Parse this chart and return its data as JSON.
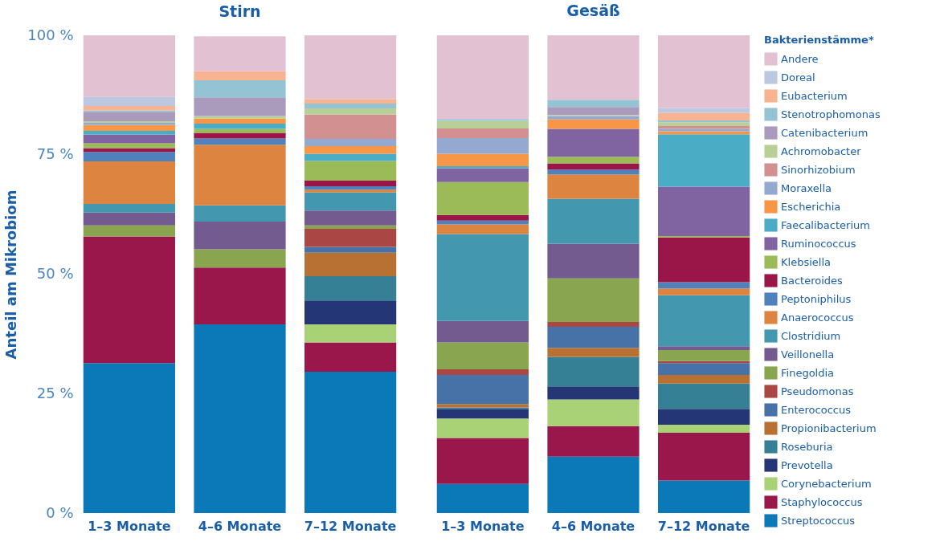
{
  "chart_data": [
    {
      "type": "bar",
      "stacked": true,
      "title": "Stirn",
      "ylabel": "Anteil am Mikrobiom",
      "categories": [
        "1–3 Monate",
        "4–6 Monate",
        "7–12 Monate"
      ],
      "ylim": [
        0,
        100
      ],
      "yticks": [
        {
          "value": 0,
          "label": "0 %"
        },
        {
          "value": 25,
          "label": "25 %"
        },
        {
          "value": 50,
          "label": "50 %"
        },
        {
          "value": 75,
          "label": "75 %"
        },
        {
          "value": 100,
          "label": "100 %"
        }
      ],
      "grid": false,
      "series": [
        {
          "color": "#0b78b7",
          "values": [
            31.4,
            39.5,
            29.6
          ]
        },
        {
          "color": "#99174a",
          "values": [
            26.5,
            11.9,
            6.1
          ]
        },
        {
          "color": "#a9d277",
          "values": [
            null,
            null,
            3.8
          ]
        },
        {
          "color": "#253677",
          "values": [
            null,
            null,
            5.0
          ]
        },
        {
          "color": "#368095",
          "values": [
            null,
            null,
            5.1
          ]
        },
        {
          "color": "#b87033",
          "values": [
            null,
            null,
            4.9
          ]
        },
        {
          "color": "#4672a8",
          "values": [
            null,
            null,
            1.2
          ]
        },
        {
          "color": "#aa4644",
          "values": [
            null,
            null,
            3.8
          ]
        },
        {
          "color": "#8aa54f",
          "values": [
            2.3,
            3.8,
            0.7
          ]
        },
        {
          "color": "#735a8f",
          "values": [
            2.7,
            5.8,
            3.1
          ]
        },
        {
          "color": "#4398b0",
          "values": [
            1.8,
            3.4,
            3.8
          ]
        },
        {
          "color": "#dc8440",
          "values": [
            8.9,
            12.7,
            0.6
          ]
        },
        {
          "color": "#4f81bd",
          "values": [
            2.0,
            1.3,
            0.7
          ]
        },
        {
          "color": "#9a1548",
          "values": [
            0.8,
            1.2,
            1.2
          ]
        },
        {
          "color": "#9bbb59",
          "values": [
            1.0,
            0.8,
            4.1
          ]
        },
        {
          "color": "#8064a2",
          "values": [
            1.8,
            null,
            null
          ]
        },
        {
          "color": "#4bacc6",
          "values": [
            0.8,
            1.1,
            1.5
          ]
        },
        {
          "color": "#f79646",
          "values": [
            1.2,
            1.1,
            1.6
          ]
        },
        {
          "color": "#94a9d0",
          "values": [
            0.5,
            null,
            1.5
          ]
        },
        {
          "color": "#d29190",
          "values": [
            null,
            null,
            5.1
          ]
        },
        {
          "color": "#b9cf98",
          "values": [
            0.3,
            0.5,
            1.3
          ]
        },
        {
          "color": "#aa9bbd",
          "values": [
            2.0,
            3.9,
            null
          ]
        },
        {
          "color": "#94c3d4",
          "values": [
            0.3,
            3.6,
            1.0
          ]
        },
        {
          "color": "#f8b490",
          "values": [
            0.9,
            1.9,
            1.0
          ]
        },
        {
          "color": "#bcc8e0",
          "values": [
            1.9,
            null,
            null
          ]
        },
        {
          "color": "#e2c2d2",
          "values": [
            12.9,
            7.3,
            13.3
          ]
        }
      ]
    },
    {
      "type": "bar",
      "stacked": true,
      "title": "Gesäß",
      "legend_title": "Bakterienstämme*",
      "categories": [
        "1–3 Monate",
        "4–6 Monate",
        "7–12 Monate"
      ],
      "ylim": [
        0,
        100
      ],
      "grid": false,
      "legend": "right",
      "tick_labels": "x",
      "series": [
        {
          "name": "Streptococcus",
          "color": "#0b78b7",
          "values": [
            6.1,
            11.8,
            6.8
          ]
        },
        {
          "name": "Staphylococcus",
          "color": "#99174a",
          "values": [
            9.6,
            6.4,
            10.0
          ]
        },
        {
          "name": "Corynebacterium",
          "color": "#a9d277",
          "values": [
            4.1,
            5.6,
            1.7
          ]
        },
        {
          "name": "Prevotella",
          "color": "#253677",
          "values": [
            2.0,
            2.7,
            3.3
          ]
        },
        {
          "name": "Roseburia",
          "color": "#368095",
          "values": [
            0.3,
            6.2,
            5.3
          ]
        },
        {
          "name": "Propionibacterium",
          "color": "#b87033",
          "values": [
            0.7,
            1.9,
            1.8
          ]
        },
        {
          "name": "Enterococcus",
          "color": "#4672a8",
          "values": [
            6.1,
            4.4,
            2.5
          ]
        },
        {
          "name": "Pseudomonas",
          "color": "#aa4644",
          "values": [
            1.2,
            1.0,
            0.4
          ]
        },
        {
          "name": "Finegoldia",
          "color": "#8aa54f",
          "values": [
            5.6,
            9.1,
            2.3
          ]
        },
        {
          "name": "Veillonella",
          "color": "#735a8f",
          "values": [
            4.5,
            7.3,
            0.8
          ]
        },
        {
          "name": "Clostridium",
          "color": "#4398b0",
          "values": [
            18.2,
            9.4,
            10.7
          ]
        },
        {
          "name": "Anaerococcus",
          "color": "#dc8440",
          "values": [
            2.0,
            5.1,
            1.4
          ]
        },
        {
          "name": "Peptoniphilus",
          "color": "#4f81bd",
          "values": [
            0.8,
            1.0,
            1.3
          ]
        },
        {
          "name": "Bacteroides",
          "color": "#9a1548",
          "values": [
            1.2,
            1.3,
            9.4
          ]
        },
        {
          "name": "Klebsiella",
          "color": "#9bbb59",
          "values": [
            6.9,
            1.4,
            0.3
          ]
        },
        {
          "name": "Ruminococcus",
          "color": "#8064a2",
          "values": [
            2.9,
            5.8,
            10.3
          ]
        },
        {
          "name": "Faecalibacterium",
          "color": "#4bacc6",
          "values": [
            0.4,
            null,
            11.0
          ]
        },
        {
          "name": "Escherichia",
          "color": "#f79646",
          "values": [
            2.6,
            2.0,
            0.6
          ]
        },
        {
          "name": "Moraxella",
          "color": "#94a9d0",
          "values": [
            3.3,
            0.7,
            0.5
          ]
        },
        {
          "name": "Sinorhizobium",
          "color": "#d29190",
          "values": [
            2.0,
            null,
            0.6
          ]
        },
        {
          "name": "Achromobacter",
          "color": "#b9cf98",
          "values": [
            1.6,
            0.2,
            0.8
          ]
        },
        {
          "name": "Catenibacterium",
          "color": "#aa9bbd",
          "values": [
            null,
            1.7,
            null
          ]
        },
        {
          "name": "Stenotrophomonas",
          "color": "#94c3d4",
          "values": [
            0.4,
            1.5,
            0.4
          ]
        },
        {
          "name": "Eubacterium",
          "color": "#f8b490",
          "values": [
            null,
            null,
            1.6
          ]
        },
        {
          "name": "Doreal",
          "color": "#bcc8e0",
          "values": [
            null,
            null,
            1.0
          ]
        },
        {
          "name": "Andere",
          "color": "#e2c2d2",
          "values": [
            17.5,
            13.5,
            15.2
          ]
        }
      ]
    }
  ]
}
